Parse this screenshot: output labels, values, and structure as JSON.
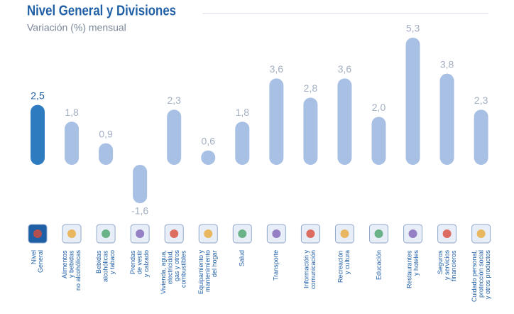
{
  "chart_data": {
    "type": "bar",
    "title": "Nivel General y Divisiones",
    "subtitle": "Variación (%) mensual",
    "categories": [
      "Nivel\nGeneral",
      "Alimentos\ny bebidas\nno alcohólicas",
      "Bebidas\nalcohólicas\ny tabaco",
      "Prendas\nde vestir\ny calzado",
      "Vivienda, agua,\nelectricidad,\ngas y otros\ncombustibles",
      "Equipamiento y\nmantenimiento\ndel hogar",
      "Salud",
      "Transporte",
      "Información y\ncomunicación",
      "Recreación\ny cultura",
      "Educación",
      "Restaurantes\ny hoteles",
      "Seguros\ny servicios\nfinancieros",
      "Cuidado personal,\nprotección social\ny otros productos"
    ],
    "values": [
      2.5,
      1.8,
      0.9,
      -1.6,
      2.3,
      0.6,
      1.8,
      3.6,
      2.8,
      3.6,
      2.0,
      5.3,
      3.8,
      2.3
    ],
    "value_labels": [
      "2,5",
      "1,8",
      "0,9",
      "-1,6",
      "2,3",
      "0,6",
      "1,8",
      "3,6",
      "2,8",
      "3,6",
      "2,0",
      "5,3",
      "3,8",
      "2,3"
    ],
    "colors": [
      "#2f7bc0",
      "#a8c0e4",
      "#a8c0e4",
      "#a8c0e4",
      "#a8c0e4",
      "#a8c0e4",
      "#a8c0e4",
      "#a8c0e4",
      "#a8c0e4",
      "#a8c0e4",
      "#a8c0e4",
      "#a8c0e4",
      "#a8c0e4",
      "#a8c0e4"
    ]
  }
}
